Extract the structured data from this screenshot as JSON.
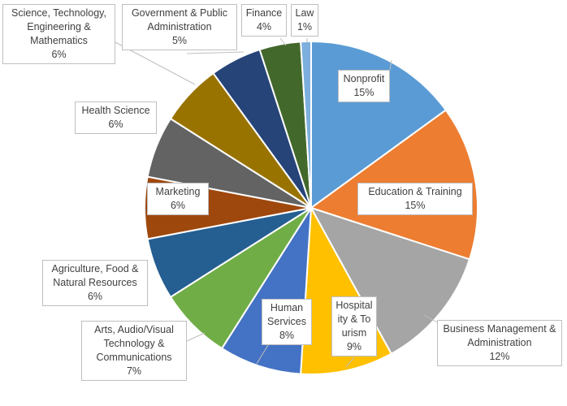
{
  "chart_data": {
    "type": "pie",
    "title": "",
    "start_angle": "top, clockwise",
    "legend": "none",
    "categories": [
      "Nonprofit",
      "Education & Training",
      "Business Management & Administration",
      "Hospitality & Tourism",
      "Human Services",
      "Arts, Audio/Visual Technology & Communications",
      "Agriculture, Food & Natural Resources",
      "Marketing",
      "Health Science",
      "Science, Technology, Engineering & Mathematics",
      "Government & Public Administration",
      "Finance",
      "Law"
    ],
    "values": [
      15,
      15,
      12,
      9,
      8,
      7,
      6,
      6,
      6,
      6,
      5,
      4,
      1
    ],
    "unit": "%",
    "colors": [
      "#5B9BD5",
      "#ED7D31",
      "#A5A5A5",
      "#FFC000",
      "#4472C4",
      "#70AD47",
      "#255E91",
      "#9E480E",
      "#636363",
      "#997300",
      "#264478",
      "#43682B",
      "#7CAFDD"
    ]
  }
}
